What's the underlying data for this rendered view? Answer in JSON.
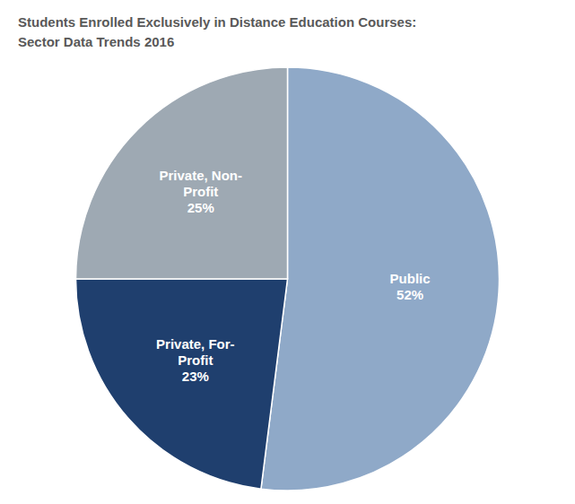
{
  "chart_data": {
    "type": "pie",
    "title": "Students Enrolled Exclusively in Distance Education Courses:",
    "subtitle": "Sector Data Trends 2016",
    "categories": [
      "Public",
      "Private, For-\nProfit",
      "Private, Non-\nProfit"
    ],
    "values": [
      52,
      23,
      25
    ],
    "value_labels": [
      "52%",
      "23%",
      "25%"
    ],
    "colors": [
      "#8FA9C8",
      "#1F3F6E",
      "#9EA9B3"
    ],
    "data_labels": true
  }
}
